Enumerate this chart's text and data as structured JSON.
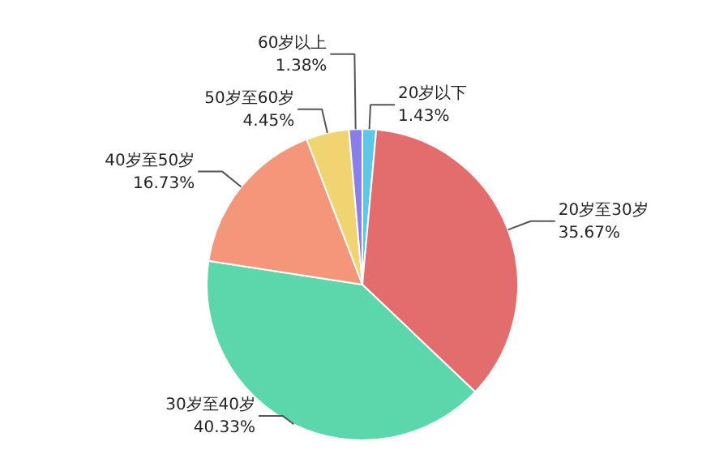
{
  "chart_data": {
    "type": "pie",
    "categories": [
      "20岁以下",
      "20岁至30岁",
      "30岁至40岁",
      "40岁至50岁",
      "50岁至60岁",
      "60岁以上"
    ],
    "values": [
      1.43,
      35.67,
      40.33,
      16.73,
      4.45,
      1.38
    ],
    "value_labels": [
      "1.43%",
      "35.67%",
      "40.33%",
      "16.73%",
      "4.45%",
      "1.38%"
    ],
    "colors": [
      "#5ec6e6",
      "#e36d6d",
      "#5cd6ab",
      "#f39679",
      "#f1d472",
      "#8c7ee8"
    ]
  }
}
